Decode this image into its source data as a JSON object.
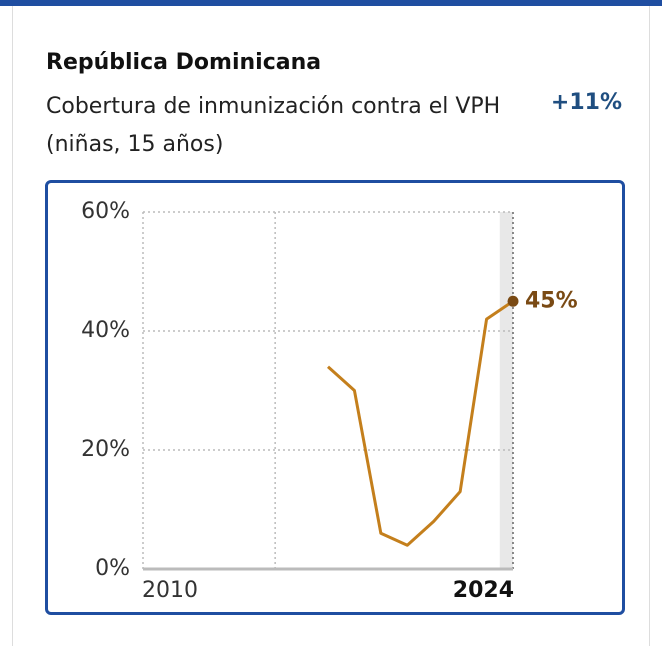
{
  "header": {
    "title": "República Dominicana",
    "subtitle": "Cobertura de inmunización contra el VPH (niñas, 15 años)",
    "change": "+11%"
  },
  "chart_data": {
    "type": "line",
    "x": [
      2017,
      2018,
      2019,
      2020,
      2021,
      2022,
      2023,
      2024
    ],
    "values": [
      34,
      30,
      6,
      4,
      8,
      13,
      42,
      45
    ],
    "value_labels": [
      null,
      null,
      null,
      null,
      null,
      null,
      null,
      "45%"
    ],
    "color": "#c47f1c",
    "end_color": "#7a4a14",
    "xlim": [
      2010,
      2024
    ],
    "xticks": [
      2010,
      2024
    ],
    "xgrid": [
      2010,
      2015,
      2024
    ],
    "ylim": [
      0,
      60
    ],
    "yticks": [
      {
        "value": 0,
        "label": "0%"
      },
      {
        "value": 20,
        "label": "20%"
      },
      {
        "value": 40,
        "label": "40%"
      },
      {
        "value": 60,
        "label": "60%"
      }
    ],
    "grid": true
  }
}
